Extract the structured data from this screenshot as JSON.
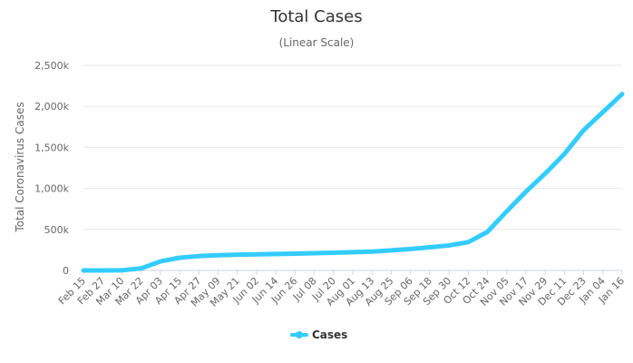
{
  "chart_data": {
    "type": "line",
    "title": "Total Cases",
    "subtitle": "(Linear Scale)",
    "xlabel": "",
    "ylabel": "Total Coronavirus Cases",
    "ylim": [
      0,
      2500000
    ],
    "yticks": [
      0,
      500000,
      1000000,
      1500000,
      2000000,
      2500000
    ],
    "ytick_labels": [
      "0",
      "500k",
      "1,000k",
      "1,500k",
      "2,000k",
      "2,500k"
    ],
    "categories": [
      "Feb 15",
      "Feb 27",
      "Mar 10",
      "Mar 22",
      "Apr 03",
      "Apr 15",
      "Apr 27",
      "May 09",
      "May 21",
      "Jun 02",
      "Jun 14",
      "Jun 26",
      "Jul 08",
      "Jul 20",
      "Aug 01",
      "Aug 13",
      "Aug 25",
      "Sep 06",
      "Sep 18",
      "Sep 30",
      "Oct 12",
      "Oct 24",
      "Nov 05",
      "Nov 17",
      "Nov 29",
      "Dec 11",
      "Dec 23",
      "Jan 04",
      "Jan 16"
    ],
    "series": [
      {
        "name": "Cases",
        "color": "#33ccff",
        "values": [
          0,
          500,
          2000,
          25000,
          110000,
          155000,
          175000,
          185000,
          192000,
          196000,
          200000,
          205000,
          210000,
          215000,
          222000,
          230000,
          245000,
          262000,
          282000,
          305000,
          345000,
          470000,
          720000,
          960000,
          1180000,
          1420000,
          1710000,
          1930000,
          2150000
        ]
      }
    ],
    "grid": true,
    "legend_position": "bottom-center"
  }
}
